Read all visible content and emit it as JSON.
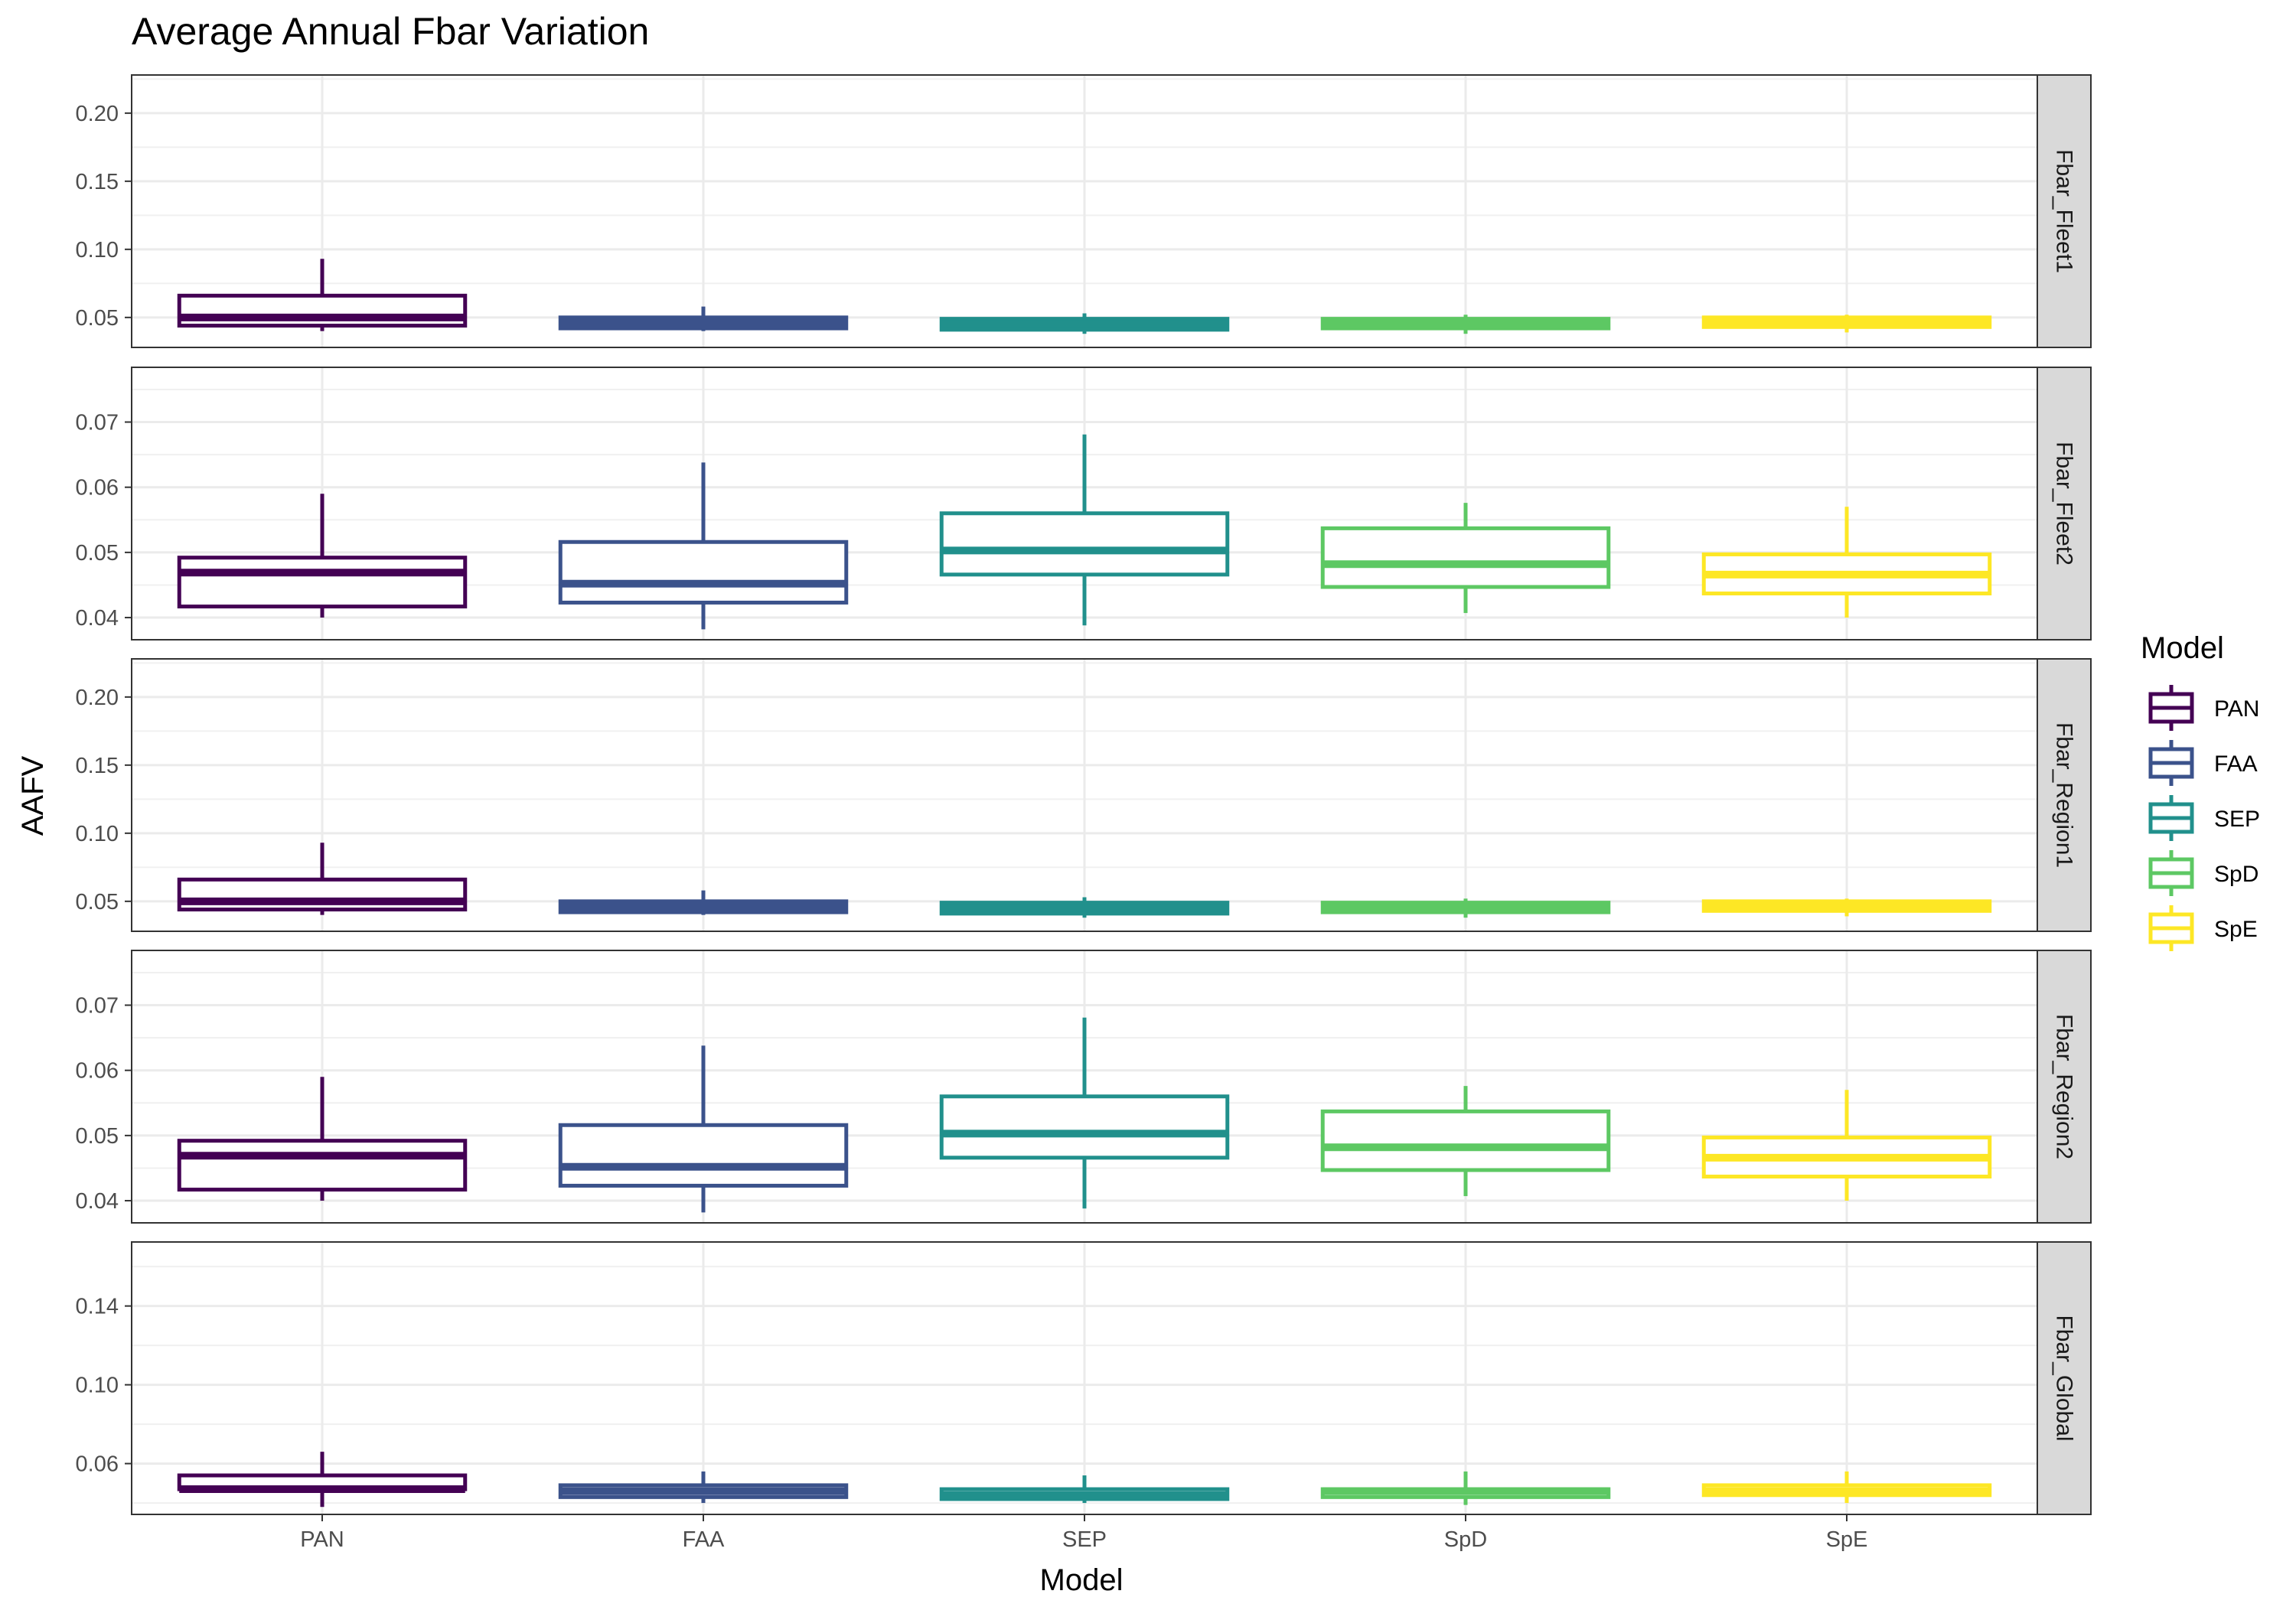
{
  "chart_data": {
    "type": "boxplot",
    "title": "Average Annual Fbar Variation",
    "xlabel": "Model",
    "ylabel": "AAFV",
    "categories": [
      "PAN",
      "FAA",
      "SEP",
      "SpD",
      "SpE"
    ],
    "colors": {
      "PAN": "#440154",
      "FAA": "#3B528B",
      "SEP": "#21908C",
      "SpD": "#5DC863",
      "SpE": "#FDE725"
    },
    "legend": {
      "title": "Model",
      "position": "right",
      "entries": [
        "PAN",
        "FAA",
        "SEP",
        "SpD",
        "SpE"
      ]
    },
    "grid": true,
    "facets": [
      {
        "label": "Fbar_Fleet1",
        "ylim": [
          0.028,
          0.228
        ],
        "yticks": [
          0.05,
          0.1,
          0.15,
          0.2
        ],
        "ytick_labels": [
          "0.05",
          "0.10",
          "0.15",
          "0.20"
        ],
        "boxes": [
          {
            "category": "PAN",
            "whisker_low": 0.04,
            "q1": 0.044,
            "median": 0.05,
            "q3": 0.066,
            "whisker_high": 0.093
          },
          {
            "category": "FAA",
            "whisker_low": 0.04,
            "q1": 0.042,
            "median": 0.046,
            "q3": 0.05,
            "whisker_high": 0.058
          },
          {
            "category": "SEP",
            "whisker_low": 0.038,
            "q1": 0.041,
            "median": 0.045,
            "q3": 0.049,
            "whisker_high": 0.053
          },
          {
            "category": "SpD",
            "whisker_low": 0.038,
            "q1": 0.042,
            "median": 0.046,
            "q3": 0.049,
            "whisker_high": 0.052
          },
          {
            "category": "SpE",
            "whisker_low": 0.039,
            "q1": 0.043,
            "median": 0.046,
            "q3": 0.05,
            "whisker_high": 0.052
          }
        ]
      },
      {
        "label": "Fbar_Fleet2",
        "ylim": [
          0.0366,
          0.0784
        ],
        "yticks": [
          0.04,
          0.05,
          0.06,
          0.07
        ],
        "ytick_labels": [
          "0.04",
          "0.05",
          "0.06",
          "0.07"
        ],
        "boxes": [
          {
            "category": "PAN",
            "whisker_low": 0.04,
            "q1": 0.0417,
            "median": 0.0469,
            "q3": 0.0492,
            "whisker_high": 0.059
          },
          {
            "category": "FAA",
            "whisker_low": 0.0382,
            "q1": 0.0423,
            "median": 0.0452,
            "q3": 0.0516,
            "whisker_high": 0.0638
          },
          {
            "category": "SEP",
            "whisker_low": 0.0388,
            "q1": 0.0466,
            "median": 0.0503,
            "q3": 0.056,
            "whisker_high": 0.0681
          },
          {
            "category": "SpD",
            "whisker_low": 0.0407,
            "q1": 0.0447,
            "median": 0.0482,
            "q3": 0.0537,
            "whisker_high": 0.0576
          },
          {
            "category": "SpE",
            "whisker_low": 0.04,
            "q1": 0.0437,
            "median": 0.0466,
            "q3": 0.0497,
            "whisker_high": 0.057
          }
        ]
      },
      {
        "label": "Fbar_Region1",
        "ylim": [
          0.028,
          0.228
        ],
        "yticks": [
          0.05,
          0.1,
          0.15,
          0.2
        ],
        "ytick_labels": [
          "0.05",
          "0.10",
          "0.15",
          "0.20"
        ],
        "boxes": [
          {
            "category": "PAN",
            "whisker_low": 0.04,
            "q1": 0.044,
            "median": 0.05,
            "q3": 0.066,
            "whisker_high": 0.093
          },
          {
            "category": "FAA",
            "whisker_low": 0.04,
            "q1": 0.042,
            "median": 0.046,
            "q3": 0.05,
            "whisker_high": 0.058
          },
          {
            "category": "SEP",
            "whisker_low": 0.038,
            "q1": 0.041,
            "median": 0.045,
            "q3": 0.049,
            "whisker_high": 0.053
          },
          {
            "category": "SpD",
            "whisker_low": 0.038,
            "q1": 0.042,
            "median": 0.046,
            "q3": 0.049,
            "whisker_high": 0.052
          },
          {
            "category": "SpE",
            "whisker_low": 0.039,
            "q1": 0.043,
            "median": 0.046,
            "q3": 0.05,
            "whisker_high": 0.052
          }
        ]
      },
      {
        "label": "Fbar_Region2",
        "ylim": [
          0.0366,
          0.0784
        ],
        "yticks": [
          0.04,
          0.05,
          0.06,
          0.07
        ],
        "ytick_labels": [
          "0.04",
          "0.05",
          "0.06",
          "0.07"
        ],
        "boxes": [
          {
            "category": "PAN",
            "whisker_low": 0.04,
            "q1": 0.0417,
            "median": 0.0469,
            "q3": 0.0492,
            "whisker_high": 0.059
          },
          {
            "category": "FAA",
            "whisker_low": 0.0382,
            "q1": 0.0423,
            "median": 0.0452,
            "q3": 0.0516,
            "whisker_high": 0.0638
          },
          {
            "category": "SEP",
            "whisker_low": 0.0388,
            "q1": 0.0466,
            "median": 0.0503,
            "q3": 0.056,
            "whisker_high": 0.0681
          },
          {
            "category": "SpD",
            "whisker_low": 0.0407,
            "q1": 0.0447,
            "median": 0.0482,
            "q3": 0.0537,
            "whisker_high": 0.0576
          },
          {
            "category": "SpE",
            "whisker_low": 0.04,
            "q1": 0.0437,
            "median": 0.0466,
            "q3": 0.0497,
            "whisker_high": 0.057
          }
        ]
      },
      {
        "label": "Fbar_Global",
        "ylim": [
          0.0342,
          0.1725
        ],
        "yticks": [
          0.06,
          0.1,
          0.14
        ],
        "ytick_labels": [
          "0.06",
          "0.10",
          "0.14"
        ],
        "boxes": [
          {
            "category": "PAN",
            "whisker_low": 0.038,
            "q1": 0.047,
            "median": 0.047,
            "q3": 0.054,
            "whisker_high": 0.066
          },
          {
            "category": "FAA",
            "whisker_low": 0.04,
            "q1": 0.043,
            "median": 0.046,
            "q3": 0.049,
            "whisker_high": 0.056
          },
          {
            "category": "SEP",
            "whisker_low": 0.04,
            "q1": 0.042,
            "median": 0.044,
            "q3": 0.047,
            "whisker_high": 0.054
          },
          {
            "category": "SpD",
            "whisker_low": 0.039,
            "q1": 0.043,
            "median": 0.046,
            "q3": 0.047,
            "whisker_high": 0.056
          },
          {
            "category": "SpE",
            "whisker_low": 0.04,
            "q1": 0.044,
            "median": 0.046,
            "q3": 0.049,
            "whisker_high": 0.056
          }
        ]
      }
    ]
  }
}
